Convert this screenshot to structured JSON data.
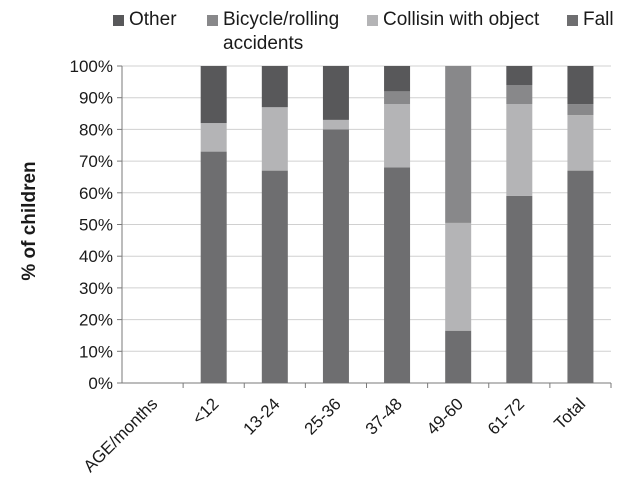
{
  "chart_data": {
    "type": "bar",
    "stacked": true,
    "categories": [
      "AGE/months",
      "<12",
      "13-24",
      "25-36",
      "37-48",
      "49-60",
      "61-72",
      "Total"
    ],
    "series": [
      {
        "name": "Fall",
        "color": "#6e6e70",
        "values": [
          null,
          73,
          67,
          80,
          68,
          16.5,
          59,
          67
        ]
      },
      {
        "name": "Collisin with object",
        "color": "#b4b4b6",
        "values": [
          null,
          9,
          20,
          3,
          20,
          34,
          29,
          17.5
        ]
      },
      {
        "name": "Bicycle/rolling accidents",
        "color": "#88888a",
        "values": [
          null,
          0,
          0,
          0,
          4,
          49.5,
          6,
          3.5
        ]
      },
      {
        "name": "Other",
        "color": "#58585a",
        "values": [
          null,
          18,
          13,
          17,
          8,
          0,
          6,
          12
        ]
      }
    ],
    "legend_order": [
      "Other",
      "Bicycle/rolling accidents",
      "Collisin with object",
      "Fall"
    ],
    "ylabel": "% of children",
    "yticks": [
      "0%",
      "10%",
      "20%",
      "30%",
      "40%",
      "50%",
      "60%",
      "70%",
      "80%",
      "90%",
      "100%"
    ],
    "ylim": [
      0,
      100
    ],
    "legend_position": "top",
    "grid": true
  },
  "legend": {
    "other": "Other",
    "bicycle": "Bicycle/rolling accidents",
    "collision": "Collisin with object",
    "fall": "Fall"
  }
}
